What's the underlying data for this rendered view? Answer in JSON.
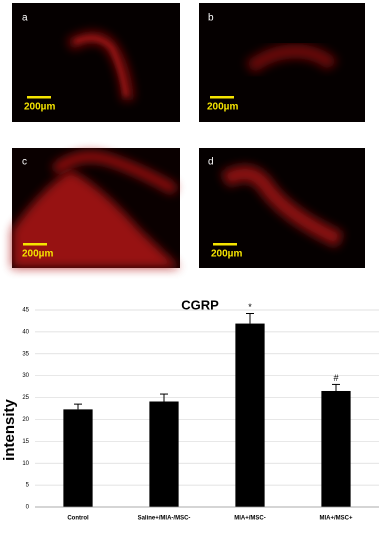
{
  "panels": [
    {
      "label": "a",
      "scale": "200µm"
    },
    {
      "label": "b",
      "scale": "200µm"
    },
    {
      "label": "c",
      "scale": "200µm"
    },
    {
      "label": "d",
      "scale": "200µm"
    }
  ],
  "chart_data": {
    "type": "bar",
    "title": "CGRP",
    "y_label": "intensity",
    "categories": [
      "Control",
      "Saline+/MIA-/MSC-",
      "MIA+/MSC-",
      "MIA+/MSC+"
    ],
    "values": [
      22.3,
      24.1,
      41.9,
      26.5
    ],
    "errors": [
      1.2,
      1.7,
      2.3,
      1.5
    ],
    "value_annotations": [
      null,
      null,
      "*",
      "#"
    ],
    "color": "#000000",
    "ylim": [
      0,
      45
    ],
    "yticks": [
      0,
      5,
      10,
      15,
      20,
      25,
      30,
      35,
      40,
      45
    ],
    "grid": true
  }
}
